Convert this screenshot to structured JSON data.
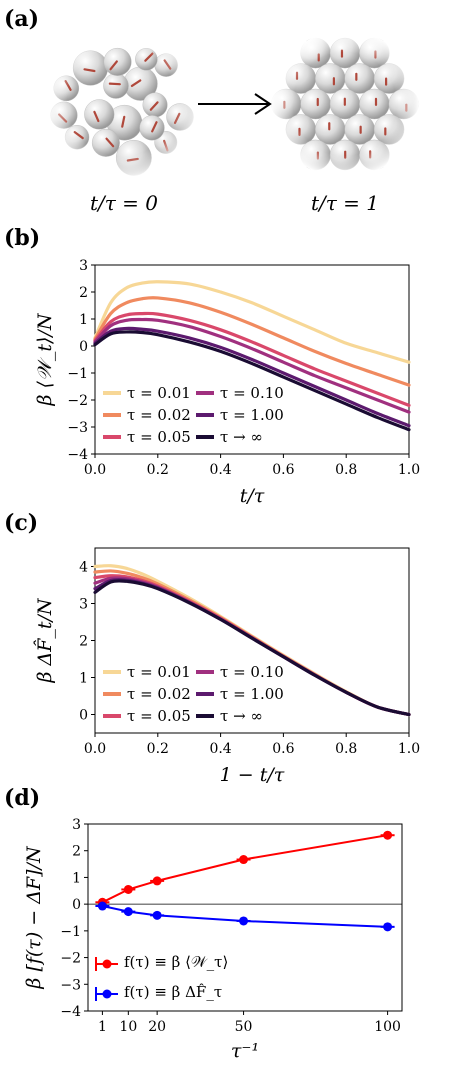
{
  "panel_a": {
    "label": "(a)",
    "left_caption": "t/τ = 0",
    "right_caption": "t/τ = 1",
    "arrow_icon": "right-arrow-icon"
  },
  "chart_data": [
    {
      "panel": "(b)",
      "type": "line",
      "xlabel": "t/τ",
      "ylabel": "β ⟨𝒲_t⟩/N",
      "xlim": [
        0.0,
        1.0
      ],
      "ylim": [
        -4,
        3
      ],
      "xticks": [
        "0.0",
        "0.2",
        "0.4",
        "0.6",
        "0.8",
        "1.0"
      ],
      "yticks": [
        "−4",
        "−3",
        "−2",
        "−1",
        "0",
        "1",
        "2",
        "3"
      ],
      "legend_placement": "lower-left",
      "colors": [
        "#f7d796",
        "#f08a5f",
        "#d9486b",
        "#a0307f",
        "#5c1a6e",
        "#1a0c33"
      ],
      "x": [
        0.0,
        0.05,
        0.1,
        0.15,
        0.2,
        0.3,
        0.4,
        0.5,
        0.6,
        0.7,
        0.8,
        0.9,
        1.0
      ],
      "series": [
        {
          "name": "τ = 0.01",
          "values": [
            0.3,
            1.6,
            2.15,
            2.33,
            2.38,
            2.3,
            2.0,
            1.6,
            1.1,
            0.6,
            0.1,
            -0.25,
            -0.6
          ]
        },
        {
          "name": "τ = 0.02",
          "values": [
            0.25,
            1.2,
            1.6,
            1.75,
            1.78,
            1.6,
            1.25,
            0.8,
            0.3,
            -0.2,
            -0.65,
            -1.05,
            -1.45
          ]
        },
        {
          "name": "τ = 0.05",
          "values": [
            0.2,
            0.9,
            1.15,
            1.2,
            1.18,
            0.95,
            0.6,
            0.15,
            -0.35,
            -0.85,
            -1.3,
            -1.75,
            -2.2
          ]
        },
        {
          "name": "τ = 0.10",
          "values": [
            0.15,
            0.75,
            0.95,
            0.98,
            0.95,
            0.72,
            0.35,
            -0.1,
            -0.6,
            -1.1,
            -1.55,
            -2.0,
            -2.45
          ]
        },
        {
          "name": "τ = 1.00",
          "values": [
            0.1,
            0.55,
            0.65,
            0.62,
            0.55,
            0.3,
            -0.05,
            -0.5,
            -1.0,
            -1.5,
            -2.0,
            -2.5,
            -2.95
          ]
        },
        {
          "name": "τ → ∞",
          "values": [
            0.05,
            0.45,
            0.52,
            0.5,
            0.42,
            0.15,
            -0.2,
            -0.65,
            -1.15,
            -1.65,
            -2.15,
            -2.65,
            -3.1
          ]
        }
      ]
    },
    {
      "panel": "(c)",
      "type": "line",
      "xlabel": "1 − t/τ",
      "ylabel": "β ΔF̂_t/N",
      "xlim": [
        0.0,
        1.0
      ],
      "ylim": [
        -0.5,
        4.5
      ],
      "xticks": [
        "0.0",
        "0.2",
        "0.4",
        "0.6",
        "0.8",
        "1.0"
      ],
      "yticks": [
        "0",
        "1",
        "2",
        "3",
        "4"
      ],
      "legend_placement": "lower-left",
      "colors": [
        "#f7d796",
        "#f08a5f",
        "#d9486b",
        "#a0307f",
        "#5c1a6e",
        "#1a0c33"
      ],
      "x": [
        0.0,
        0.05,
        0.1,
        0.15,
        0.2,
        0.3,
        0.4,
        0.5,
        0.6,
        0.7,
        0.8,
        0.9,
        1.0
      ],
      "series": [
        {
          "name": "τ = 0.01",
          "values": [
            4.0,
            4.02,
            3.95,
            3.8,
            3.6,
            3.15,
            2.65,
            2.12,
            1.6,
            1.1,
            0.62,
            0.2,
            0.0
          ]
        },
        {
          "name": "τ = 0.02",
          "values": [
            3.85,
            3.88,
            3.82,
            3.7,
            3.53,
            3.1,
            2.62,
            2.1,
            1.58,
            1.08,
            0.6,
            0.2,
            0.0
          ]
        },
        {
          "name": "τ = 0.05",
          "values": [
            3.7,
            3.75,
            3.72,
            3.62,
            3.47,
            3.06,
            2.6,
            2.08,
            1.57,
            1.07,
            0.6,
            0.2,
            0.0
          ]
        },
        {
          "name": "τ = 0.10",
          "values": [
            3.55,
            3.68,
            3.67,
            3.58,
            3.44,
            3.04,
            2.58,
            2.07,
            1.56,
            1.07,
            0.6,
            0.2,
            0.0
          ]
        },
        {
          "name": "τ = 1.00",
          "values": [
            3.4,
            3.62,
            3.63,
            3.55,
            3.42,
            3.03,
            2.57,
            2.07,
            1.56,
            1.06,
            0.6,
            0.2,
            0.0
          ]
        },
        {
          "name": "τ → ∞",
          "values": [
            3.3,
            3.58,
            3.6,
            3.53,
            3.4,
            3.02,
            2.57,
            2.06,
            1.56,
            1.06,
            0.6,
            0.2,
            0.0
          ]
        }
      ]
    },
    {
      "panel": "(d)",
      "type": "line",
      "xlabel": "τ⁻¹",
      "ylabel": "β [f(τ) − ΔF]/N",
      "xlim": [
        -4,
        105
      ],
      "ylim": [
        -4,
        3
      ],
      "xticks": [
        1,
        10,
        20,
        50,
        100
      ],
      "yticks": [
        "−4",
        "−3",
        "−2",
        "−1",
        "0",
        "1",
        "2",
        "3"
      ],
      "legend_placement": "lower-left",
      "x": [
        1,
        10,
        20,
        50,
        100
      ],
      "series": [
        {
          "name": "f(τ) ≡ β ⟨𝒲_τ⟩",
          "color": "#ff0000",
          "values": [
            0.07,
            0.55,
            0.87,
            1.67,
            2.58
          ]
        },
        {
          "name": "f(τ) ≡ β ΔF̂_τ",
          "color": "#0000ff",
          "values": [
            -0.07,
            -0.28,
            -0.42,
            -0.63,
            -0.85
          ]
        }
      ]
    }
  ]
}
